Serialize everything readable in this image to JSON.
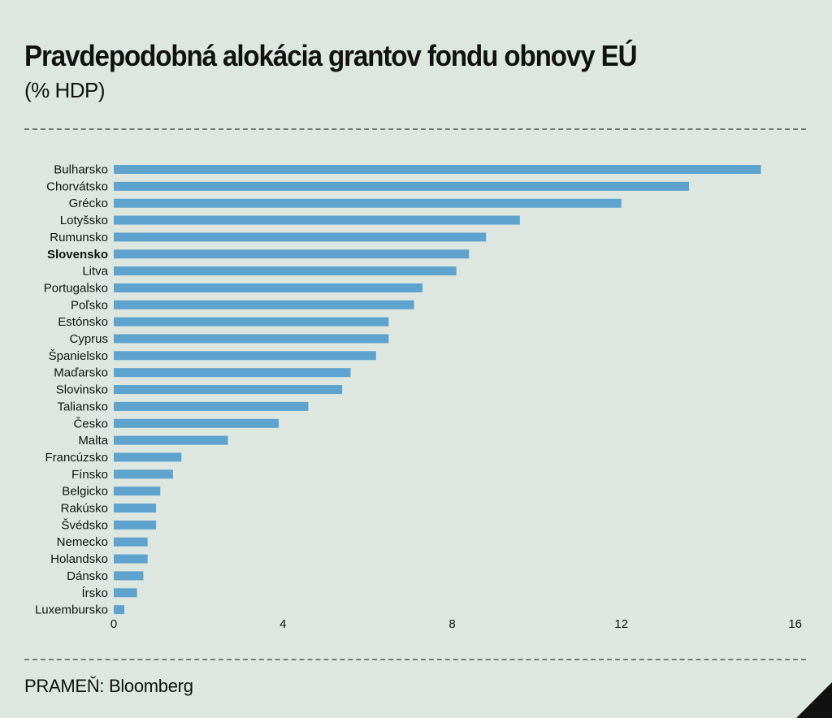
{
  "header": {
    "title": "Pravdepodobná alokácia grantov fondu obnovy EÚ",
    "subtitle": "(% HDP)"
  },
  "footer": {
    "source": "PRAMEŇ: Bloomberg"
  },
  "chart_data": {
    "type": "bar",
    "orientation": "horizontal",
    "title": "Pravdepodobná alokácia grantov fondu obnovy EÚ",
    "subtitle": "(% HDP)",
    "bar_color": "#5ea3ce",
    "highlight_category": "Slovensko",
    "xlim": [
      0,
      16
    ],
    "x_ticks": [
      0,
      4,
      8,
      12,
      16
    ],
    "grid": false,
    "legend": "none",
    "categories": [
      "Bulharsko",
      "Chorvátsko",
      "Grécko",
      "Lotyšsko",
      "Rumunsko",
      "Slovensko",
      "Litva",
      "Portugalsko",
      "Poľsko",
      "Estónsko",
      "Cyprus",
      "Španielsko",
      "Maďarsko",
      "Slovinsko",
      "Taliansko",
      "Česko",
      "Malta",
      "Francúzsko",
      "Fínsko",
      "Belgicko",
      "Rakúsko",
      "Švédsko",
      "Nemecko",
      "Holandsko",
      "Dánsko",
      "Írsko",
      "Luxembursko"
    ],
    "values": [
      15.3,
      13.6,
      12.0,
      9.6,
      8.8,
      8.4,
      8.1,
      7.3,
      7.1,
      6.5,
      6.5,
      6.2,
      5.6,
      5.4,
      4.6,
      3.9,
      2.7,
      1.6,
      1.4,
      1.1,
      1.0,
      1.0,
      0.8,
      0.8,
      0.7,
      0.55,
      0.25
    ]
  }
}
